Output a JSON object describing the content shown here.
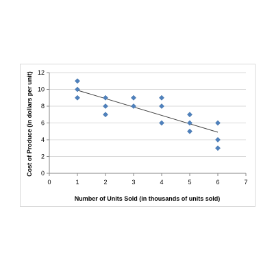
{
  "chart_data": {
    "type": "scatter",
    "title": "",
    "xlabel": "Number of Units Sold (in thousands of units sold)",
    "ylabel": "Cost of Produce (in dollars per unit)",
    "xlim": [
      0,
      7
    ],
    "ylim": [
      0,
      12
    ],
    "x_ticks": [
      "0",
      "1",
      "2",
      "3",
      "4",
      "5",
      "6",
      "7"
    ],
    "y_ticks": [
      "0",
      "2",
      "4",
      "6",
      "8",
      "10",
      "12"
    ],
    "grid": "horizontal",
    "legend": "none",
    "marker": "diamond",
    "marker_color": "#4f81bd",
    "trendline_color": "#404040",
    "gridline_color": "#d9d9d9",
    "series": [
      {
        "points": [
          [
            1,
            11
          ],
          [
            1,
            10
          ],
          [
            1,
            9
          ],
          [
            2,
            9
          ],
          [
            2,
            8
          ],
          [
            2,
            7
          ],
          [
            3,
            9
          ],
          [
            3,
            8
          ],
          [
            4,
            9
          ],
          [
            4,
            8
          ],
          [
            4,
            6
          ],
          [
            5,
            7
          ],
          [
            5,
            6
          ],
          [
            5,
            5
          ],
          [
            6,
            6
          ],
          [
            6,
            4
          ],
          [
            6,
            3
          ]
        ]
      }
    ],
    "trendline": {
      "type": "linear",
      "x_start": 1,
      "y_start": 9.9,
      "x_end": 6,
      "y_end": 4.9
    }
  }
}
